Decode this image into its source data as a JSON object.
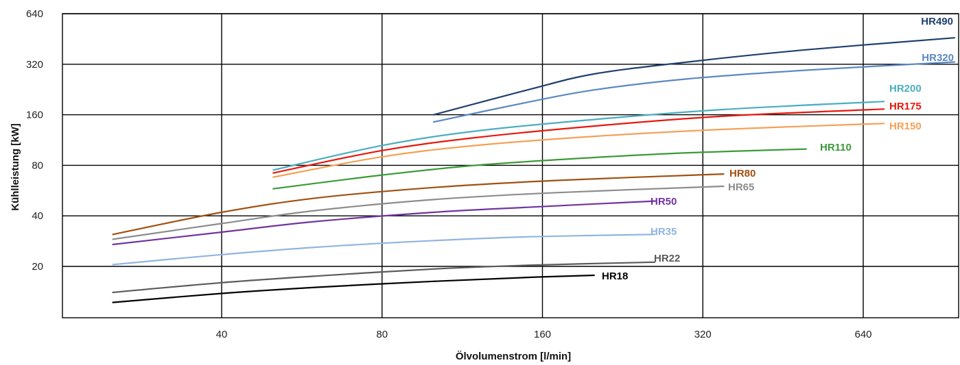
{
  "chart_data": {
    "type": "line",
    "title": "",
    "xlabel": "Ölvolumenstrom [l/min]",
    "ylabel": "Kühlleistung [kW]",
    "x_scale": "log2",
    "y_scale": "log2",
    "xlim": [
      20,
      1000
    ],
    "ylim": [
      10,
      640
    ],
    "x_ticks": [
      40,
      80,
      160,
      320,
      640
    ],
    "x_tick_labels": [
      "40",
      "80",
      "160",
      "320",
      "640"
    ],
    "y_ticks": [
      20,
      40,
      80,
      160,
      320,
      640
    ],
    "y_tick_labels": [
      "20",
      "40",
      "80",
      "160",
      "320",
      "640"
    ],
    "grid": true,
    "legend": "labels at line ends",
    "series": [
      {
        "name": "HR490",
        "color": "#1f3f6e",
        "x": [
          100,
          150,
          200,
          300,
          500,
          1000
        ],
        "y": [
          160,
          225,
          280,
          330,
          390,
          460
        ]
      },
      {
        "name": "HR320",
        "color": "#5b87c2",
        "x": [
          100,
          150,
          200,
          300,
          500,
          1000
        ],
        "y": [
          145,
          190,
          225,
          262,
          295,
          330
        ]
      },
      {
        "name": "HR200",
        "color": "#4aaec0",
        "x": [
          50,
          80,
          120,
          200,
          350,
          700
        ],
        "y": [
          75,
          105,
          128,
          150,
          172,
          192
        ]
      },
      {
        "name": "HR175",
        "color": "#e8170c",
        "x": [
          50,
          80,
          120,
          200,
          350,
          700
        ],
        "y": [
          72,
          98,
          117,
          137,
          157,
          173
        ]
      },
      {
        "name": "HR150",
        "color": "#f5a055",
        "x": [
          50,
          80,
          120,
          200,
          350,
          700
        ],
        "y": [
          68,
          90,
          105,
          119,
          131,
          142
        ]
      },
      {
        "name": "HR110",
        "color": "#3a9a37",
        "x": [
          50,
          80,
          120,
          200,
          300,
          500
        ],
        "y": [
          58,
          70,
          80,
          89,
          95,
          100
        ]
      },
      {
        "name": "HR80",
        "color": "#a0500f",
        "x": [
          25,
          40,
          60,
          100,
          170,
          350
        ],
        "y": [
          31,
          42,
          51,
          59,
          65,
          71
        ]
      },
      {
        "name": "HR65",
        "color": "#8c8c8c",
        "x": [
          25,
          40,
          60,
          100,
          170,
          350
        ],
        "y": [
          29,
          36,
          43,
          50,
          55,
          60
        ]
      },
      {
        "name": "HR50",
        "color": "#7033a0",
        "x": [
          25,
          40,
          60,
          100,
          150,
          260
        ],
        "y": [
          27,
          32,
          37,
          42,
          45,
          49
        ]
      },
      {
        "name": "HR35",
        "color": "#90b4e0",
        "x": [
          25,
          40,
          60,
          100,
          150,
          260
        ],
        "y": [
          20.5,
          23.5,
          26,
          28.5,
          30,
          31
        ]
      },
      {
        "name": "HR22",
        "color": "#5a5a5a",
        "x": [
          25,
          40,
          60,
          100,
          150,
          260
        ],
        "y": [
          14,
          16,
          17.5,
          19.3,
          20.3,
          21.2
        ]
      },
      {
        "name": "HR18",
        "color": "#000000",
        "x": [
          25,
          40,
          60,
          100,
          150,
          200
        ],
        "y": [
          12.2,
          13.8,
          15,
          16.3,
          17.2,
          17.7
        ]
      }
    ],
    "label_colors": {
      "HR490": "#1f3f6e",
      "HR320": "#5b87c2",
      "HR200": "#4aaec0",
      "HR175": "#e8170c",
      "HR150": "#f5a055",
      "HR110": "#3a9a37",
      "HR80": "#a0500f",
      "HR65": "#8c8c8c",
      "HR50": "#7033a0",
      "HR35": "#90b4e0",
      "HR22": "#5a5a5a",
      "HR18": "#000000"
    }
  }
}
